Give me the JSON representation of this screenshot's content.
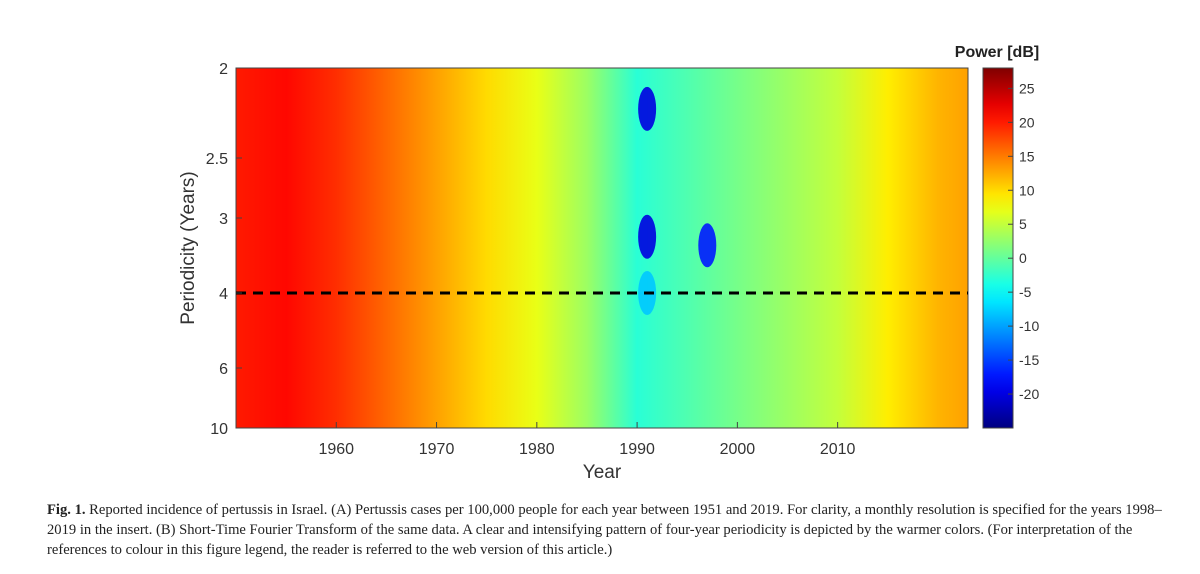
{
  "chart_data": {
    "type": "heatmap",
    "xlabel": "Year",
    "ylabel": "Periodicity (Years)",
    "x_ticks": [
      "1960",
      "1970",
      "1980",
      "1990",
      "2000",
      "2010"
    ],
    "x_tick_values": [
      1960,
      1970,
      1980,
      1990,
      2000,
      2010
    ],
    "xlim": [
      1950,
      2023
    ],
    "y_ticks": [
      "2",
      "2.5",
      "3",
      "4",
      "6",
      "10"
    ],
    "y_tick_values": [
      2,
      2.5,
      3,
      4,
      6,
      10
    ],
    "ylim": [
      2,
      10
    ],
    "y_scale": "reciprocal",
    "colorbar": {
      "title": "Power [dB]",
      "ticks": [
        "25",
        "20",
        "15",
        "10",
        "5",
        "0",
        "-5",
        "-10",
        "-15",
        "-20"
      ],
      "tick_values": [
        25,
        20,
        15,
        10,
        5,
        0,
        -5,
        -10,
        -15,
        -20
      ],
      "range": [
        -25,
        28
      ],
      "colormap": "jet"
    },
    "reference_line": {
      "periodicity": 4,
      "style": "dashed",
      "color": "#000000"
    },
    "power_profile": {
      "years": [
        1950,
        1955,
        1960,
        1965,
        1970,
        1975,
        1980,
        1985,
        1990,
        1995,
        2000,
        2005,
        2010,
        2015,
        2020,
        2023
      ],
      "power_db": [
        20,
        21,
        19,
        16,
        13,
        10,
        7,
        3,
        -3,
        -1,
        1,
        3,
        5,
        9,
        12,
        13
      ]
    },
    "features": [
      {
        "year": 1991,
        "periodicity": 2.2,
        "power_db": -20
      },
      {
        "year": 1991,
        "periodicity": 3.2,
        "power_db": -20
      },
      {
        "year": 1997,
        "periodicity": 3.3,
        "power_db": -17
      },
      {
        "year": 1991,
        "periodicity": 4.0,
        "power_db": -8
      }
    ]
  },
  "caption": {
    "label": "Fig. 1.",
    "text": "Reported incidence of pertussis in Israel. (A) Pertussis cases per 100,000 people for each year between 1951 and 2019. For clarity, a monthly resolution is specified for the years 1998–2019 in the insert. (B) Short-Time Fourier Transform of the same data. A clear and intensifying pattern of four-year periodicity is depicted by the warmer colors. (For interpretation of the references to colour in this figure legend, the reader is referred to the web version of this article.)"
  }
}
